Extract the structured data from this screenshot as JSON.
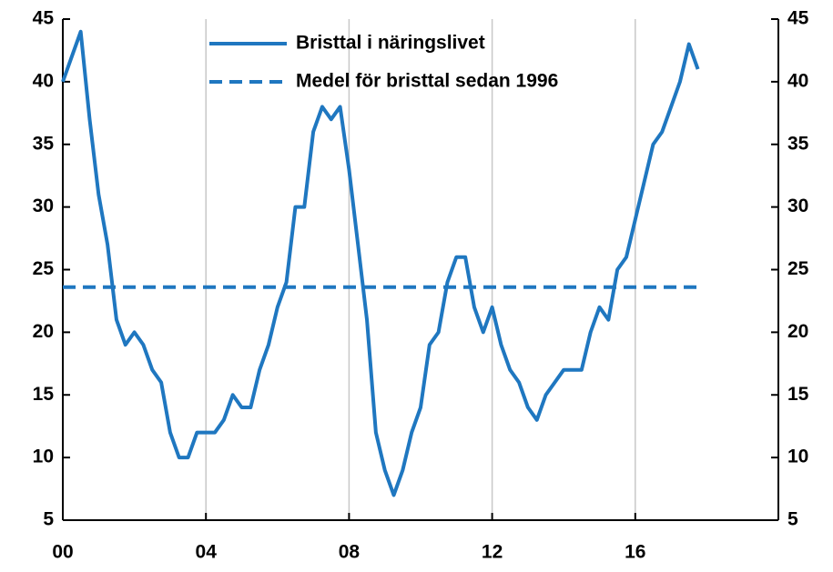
{
  "chart_data": {
    "type": "line",
    "series": [
      {
        "name": "Bristtal i näringslivet",
        "color": "#1f77c0",
        "dash": false,
        "x": [
          0,
          0.25,
          0.5,
          0.75,
          1,
          1.25,
          1.5,
          1.75,
          2,
          2.25,
          2.5,
          2.75,
          3,
          3.25,
          3.5,
          3.75,
          4,
          4.25,
          4.5,
          4.75,
          5,
          5.25,
          5.5,
          5.75,
          6,
          6.25,
          6.5,
          6.75,
          7,
          7.25,
          7.5,
          7.75,
          8,
          8.25,
          8.5,
          8.75,
          9,
          9.25,
          9.5,
          9.75,
          10,
          10.25,
          10.5,
          10.75,
          11,
          11.25,
          11.5,
          11.75,
          12,
          12.25,
          12.5,
          12.75,
          13,
          13.25,
          13.5,
          13.75,
          14,
          14.25,
          14.5,
          14.75,
          15,
          15.25,
          15.5,
          15.75,
          16,
          16.25,
          16.5,
          16.75,
          17,
          17.25,
          17.5,
          17.75
        ],
        "values": [
          40,
          42,
          44,
          37,
          31,
          27,
          21,
          19,
          20,
          19,
          17,
          16,
          12,
          10,
          10,
          12,
          12,
          12,
          13,
          15,
          14,
          14,
          17,
          19,
          22,
          24,
          30,
          30,
          36,
          38,
          37,
          38,
          33,
          27,
          21,
          12,
          9,
          7,
          9,
          12,
          14,
          19,
          20,
          24,
          26,
          26,
          22,
          20,
          22,
          19,
          17,
          16,
          14,
          13,
          15,
          16,
          17,
          17,
          17,
          20,
          22,
          21,
          25,
          26,
          29,
          32,
          35,
          36,
          38,
          40,
          43,
          41
        ]
      },
      {
        "name": "Medel för bristtal sedan 1996",
        "color": "#1f77c0",
        "dash": true,
        "x": [
          0,
          17.75
        ],
        "values": [
          23.6,
          23.6
        ]
      }
    ],
    "xlim": [
      0,
      20
    ],
    "xticks": [
      {
        "value": 0,
        "label": "00"
      },
      {
        "value": 4,
        "label": "04"
      },
      {
        "value": 8,
        "label": "08"
      },
      {
        "value": 12,
        "label": "12"
      },
      {
        "value": 16,
        "label": "16"
      }
    ],
    "ylim": [
      5,
      45
    ],
    "yticks": [
      5,
      10,
      15,
      20,
      25,
      30,
      35,
      40,
      45
    ],
    "y2lim": [
      5,
      45
    ],
    "y2ticks": [
      5,
      10,
      15,
      20,
      25,
      30,
      35,
      40,
      45
    ],
    "grid": "x",
    "legend": "top"
  }
}
